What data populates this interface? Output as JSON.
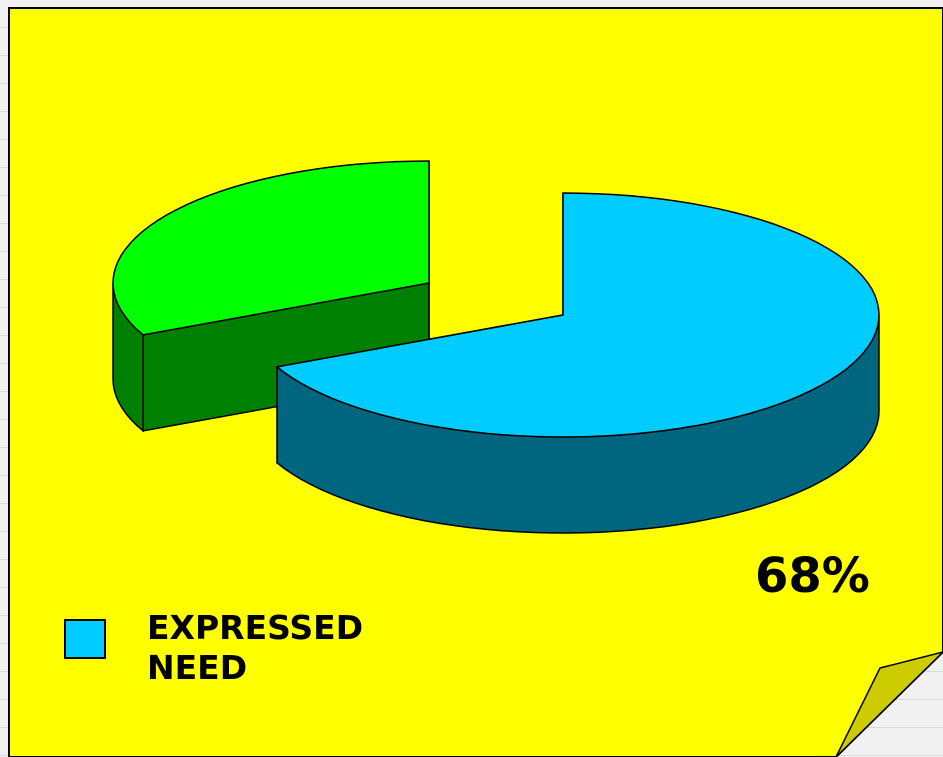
{
  "colors": {
    "background": "#ffff00",
    "expressed_need_top": "#00ccff",
    "expressed_need_side": "#006680",
    "other_top": "#00ff00",
    "other_side": "#008000",
    "page_curl": "#cccc00"
  },
  "chart_data": {
    "type": "pie",
    "style": "3d-exploded",
    "slices": [
      {
        "label": "EXPRESSED\nNEED",
        "value": 68,
        "display": "68%"
      },
      {
        "label": "",
        "value": 32,
        "display": ""
      }
    ],
    "legend": [
      {
        "label": "EXPRESSED\nNEED"
      }
    ],
    "legend_placement": "bottom-left"
  }
}
